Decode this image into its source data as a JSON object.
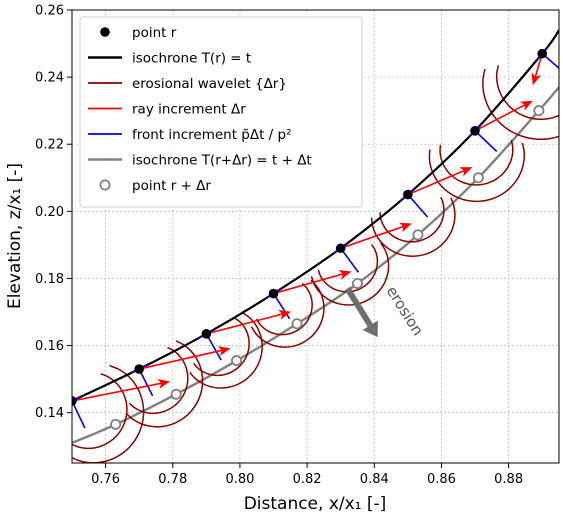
{
  "chart_data": {
    "type": "line",
    "xlabel": "Distance, x/x₁  [-]",
    "ylabel": "Elevation, z/x₁  [-]",
    "xlim": [
      0.75,
      0.895
    ],
    "ylim": [
      0.125,
      0.26
    ],
    "xticks": [
      "0.76",
      "0.78",
      "0.80",
      "0.82",
      "0.84",
      "0.86",
      "0.88"
    ],
    "yticks": [
      "0.14",
      "0.16",
      "0.18",
      "0.20",
      "0.22",
      "0.24",
      "0.26"
    ],
    "xtick_values": [
      0.76,
      0.78,
      0.8,
      0.82,
      0.84,
      0.86,
      0.88
    ],
    "ytick_values": [
      0.14,
      0.16,
      0.18,
      0.2,
      0.22,
      0.24,
      0.26
    ],
    "grid": true,
    "legend_position": "top-left",
    "legend": [
      {
        "label": "point r",
        "style": "marker-filled",
        "color": "#000000"
      },
      {
        "label": "isochrone  T(r) = t",
        "style": "line",
        "color": "#000000"
      },
      {
        "label": "erosional wavelet {Δr}",
        "style": "line",
        "color": "#8b0000"
      },
      {
        "label": "ray increment  Δr",
        "style": "line",
        "color": "#ff0000"
      },
      {
        "label": "front increment  p̃Δt / p²",
        "style": "line",
        "color": "#0000ff"
      },
      {
        "label": "isochrone  T(r+Δr) = t + Δt",
        "style": "line",
        "color": "#808080"
      },
      {
        "label": "point r + Δr",
        "style": "marker-open",
        "color": "#808080"
      }
    ],
    "annotation": {
      "text": "erosion",
      "x": 0.845,
      "y": 0.166,
      "rotation_deg": 58
    },
    "points_r": [
      {
        "x": 0.75,
        "y": 0.1435
      },
      {
        "x": 0.77,
        "y": 0.153
      },
      {
        "x": 0.79,
        "y": 0.1635
      },
      {
        "x": 0.81,
        "y": 0.1755
      },
      {
        "x": 0.83,
        "y": 0.189
      },
      {
        "x": 0.85,
        "y": 0.205
      },
      {
        "x": 0.87,
        "y": 0.224
      },
      {
        "x": 0.89,
        "y": 0.247
      }
    ],
    "points_r_plus_dr": [
      {
        "x": 0.763,
        "y": 0.1365
      },
      {
        "x": 0.781,
        "y": 0.1455
      },
      {
        "x": 0.799,
        "y": 0.1555
      },
      {
        "x": 0.817,
        "y": 0.1665
      },
      {
        "x": 0.835,
        "y": 0.1785
      },
      {
        "x": 0.853,
        "y": 0.193
      },
      {
        "x": 0.871,
        "y": 0.21
      },
      {
        "x": 0.889,
        "y": 0.23
      }
    ],
    "isochrone_t": {
      "x": [
        0.75,
        0.77,
        0.79,
        0.81,
        0.83,
        0.85,
        0.87,
        0.89,
        0.895
      ],
      "y": [
        0.1435,
        0.153,
        0.1635,
        0.1755,
        0.189,
        0.205,
        0.224,
        0.247,
        0.254
      ]
    },
    "isochrone_t_dt": {
      "x": [
        0.75,
        0.763,
        0.781,
        0.799,
        0.817,
        0.835,
        0.853,
        0.871,
        0.889,
        0.895
      ],
      "y": [
        0.131,
        0.1365,
        0.1455,
        0.1555,
        0.1665,
        0.1785,
        0.193,
        0.21,
        0.23,
        0.237
      ]
    }
  },
  "colors": {
    "isochrone_t": "#000000",
    "wavelet": "#8b0000",
    "ray": "#ff0000",
    "front": "#0000ff",
    "isochrone_t_dt": "#808080",
    "grid": "#b0b0b0",
    "erosion_arrow": "#6e6e6e"
  }
}
